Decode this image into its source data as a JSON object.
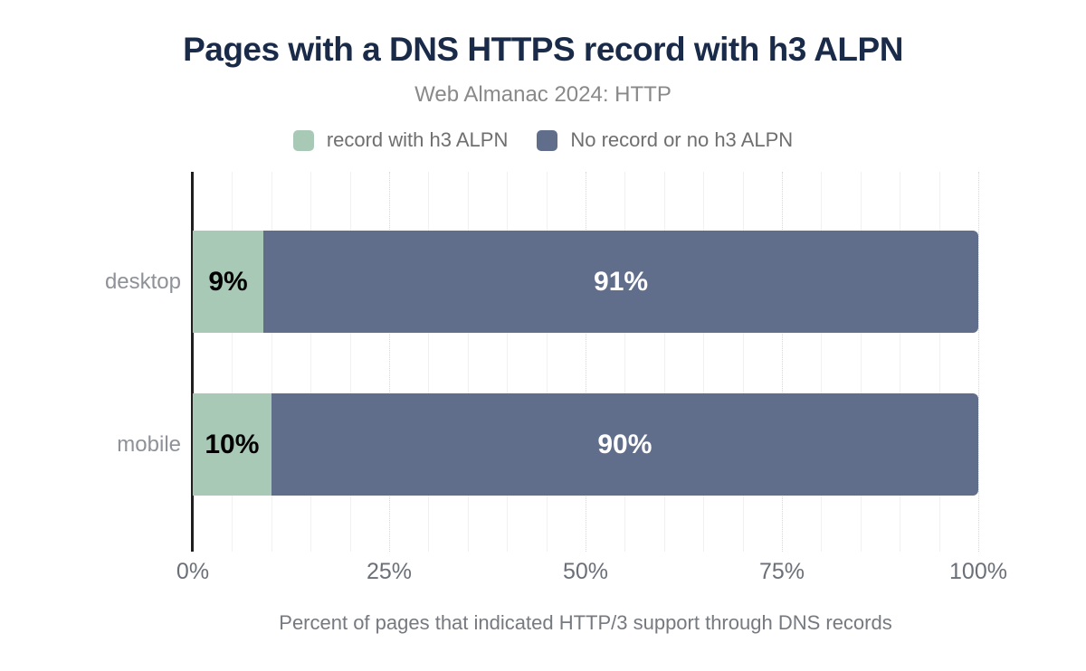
{
  "title": "Pages with a DNS HTTPS record with h3 ALPN",
  "subtitle": "Web Almanac 2024: HTTP",
  "legend": {
    "items": [
      {
        "label": "record with h3 ALPN",
        "color": "#a8c9b6"
      },
      {
        "label": "No record or no h3 ALPN",
        "color": "#606e8c"
      }
    ]
  },
  "chart_data": {
    "type": "bar",
    "orientation": "horizontal",
    "stacked": true,
    "categories": [
      "desktop",
      "mobile"
    ],
    "series": [
      {
        "name": "record with h3 ALPN",
        "color": "#a8c9b6",
        "values": [
          9,
          10
        ]
      },
      {
        "name": "No record or no h3 ALPN",
        "color": "#606e8c",
        "values": [
          91,
          90
        ]
      }
    ],
    "bar_labels": [
      [
        "9%",
        "91%"
      ],
      [
        "10%",
        "90%"
      ]
    ],
    "xlim": [
      0,
      100
    ],
    "x_ticks": [
      {
        "label": "0%",
        "value": 0
      },
      {
        "label": "25%",
        "value": 25
      },
      {
        "label": "50%",
        "value": 50
      },
      {
        "label": "75%",
        "value": 75
      },
      {
        "label": "100%",
        "value": 100
      }
    ],
    "grid": {
      "minor_step_percent": 5,
      "major_step_percent": 25,
      "major_style": "dotted",
      "minor_style": "solid"
    },
    "legend_position": "top",
    "xlabel": "Percent of pages that indicated HTTP/3 support through DNS records",
    "ylabel": ""
  },
  "colors": {
    "title": "#1a2b4a",
    "subtitle": "#898989",
    "series_green": "#a8c9b6",
    "series_slate": "#606e8c",
    "axis_line": "#1f1f1f",
    "minor_grid": "#f1f1f1",
    "major_grid": "#d6d6d6",
    "tick_text": "#6b7078",
    "background": "#ffffff"
  }
}
